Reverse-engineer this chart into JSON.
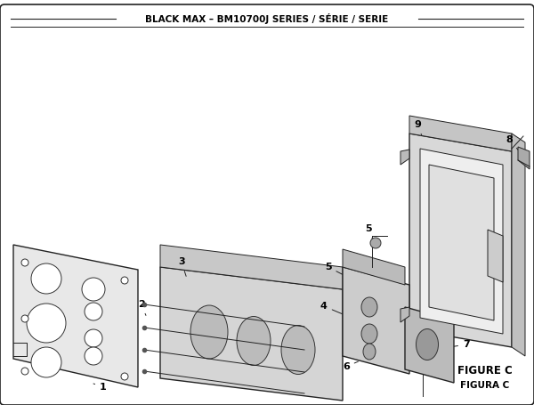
{
  "title": "BLACK MAX – BM10700J SERIES / SÉRIE / SERIE",
  "figure_label": "FIGURE C",
  "figura_label": "FIGURA C",
  "bg_color": "#ffffff",
  "border_color": "#000000",
  "line_color": "#222222"
}
